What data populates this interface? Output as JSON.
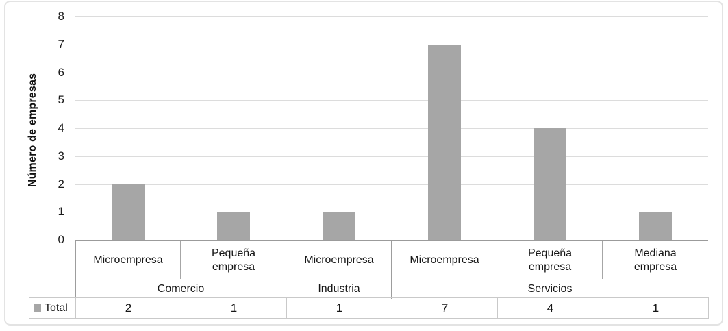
{
  "chart_data": {
    "type": "bar",
    "title": "",
    "ylabel": "Número de empresas",
    "xlabel": "",
    "ylim": [
      0,
      8
    ],
    "yticks": [
      0,
      1,
      2,
      3,
      4,
      5,
      6,
      7,
      8
    ],
    "grid": true,
    "legend_position": "data-table-left",
    "bar_color": "#a6a6a6",
    "categories": [
      "Microempresa",
      "Pequeña empresa",
      "Microempresa",
      "Microempresa",
      "Pequeña empresa",
      "Mediana empresa"
    ],
    "groups": [
      {
        "label": "Comercio",
        "span": 2
      },
      {
        "label": "Industria",
        "span": 1
      },
      {
        "label": "Servicios",
        "span": 3
      }
    ],
    "series": [
      {
        "name": "Total",
        "values": [
          2,
          1,
          1,
          7,
          4,
          1
        ]
      }
    ]
  }
}
